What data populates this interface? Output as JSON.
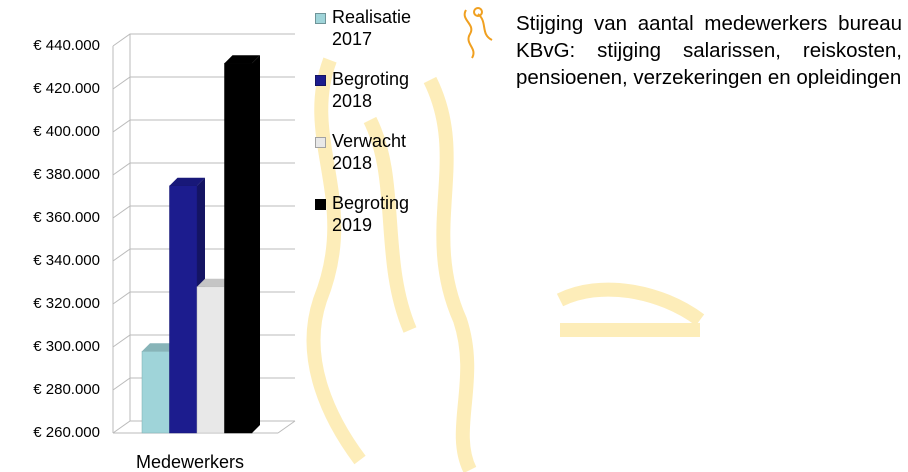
{
  "chart_data": {
    "type": "bar3d",
    "categories": [
      "Medewerkers"
    ],
    "series": [
      {
        "name": "Realisatie 2017",
        "color": "#9fd4d9",
        "values": [
          298000
        ]
      },
      {
        "name": "Begroting 2018",
        "color": "#1c1c8e",
        "values": [
          375000
        ]
      },
      {
        "name": "Verwacht 2018",
        "color": "#e8e8e8",
        "values": [
          328000
        ]
      },
      {
        "name": "Begroting 2019",
        "color": "#000000",
        "values": [
          432000
        ]
      }
    ],
    "ylim": [
      260000,
      440000
    ],
    "yticks": [
      {
        "value": 260000,
        "label": "€ 260.000"
      },
      {
        "value": 280000,
        "label": "€ 280.000"
      },
      {
        "value": 300000,
        "label": "€ 300.000"
      },
      {
        "value": 320000,
        "label": "€ 320.000"
      },
      {
        "value": 340000,
        "label": "€ 340.000"
      },
      {
        "value": 360000,
        "label": "€ 360.000"
      },
      {
        "value": 380000,
        "label": "€ 380.000"
      },
      {
        "value": 400000,
        "label": "€ 400.000"
      },
      {
        "value": 420000,
        "label": "€ 420.000"
      },
      {
        "value": 440000,
        "label": "€ 440.000"
      }
    ],
    "grid": true,
    "annotation": "Stijging van aantal medewerkers bureau KBvG: stijging salarissen, reiskosten, pensioenen, verzekeringen en opleidingen"
  }
}
